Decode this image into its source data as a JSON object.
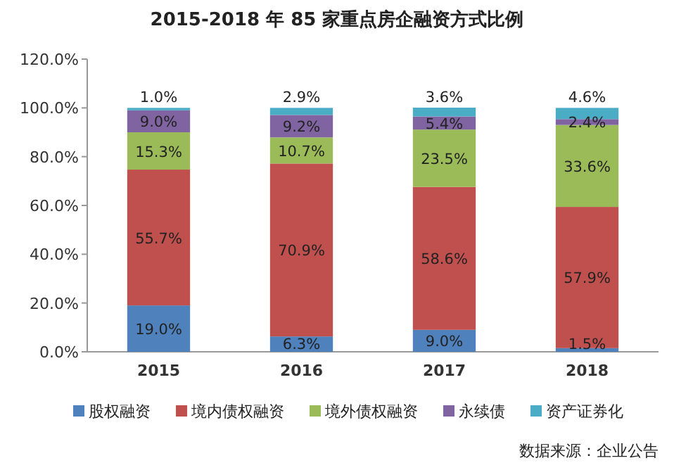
{
  "chart_data": {
    "type": "bar",
    "stacked": true,
    "title": "2015-2018 年 85 家重点房企融资方式比例",
    "categories": [
      "2015",
      "2016",
      "2017",
      "2018"
    ],
    "series": [
      {
        "name": "股权融资",
        "color": "#4f81bd",
        "values": [
          19.0,
          6.3,
          9.0,
          1.5
        ],
        "value_labels": [
          "19.0%",
          "6.3%",
          "9.0%",
          "1.5%"
        ]
      },
      {
        "name": "境内债权融资",
        "color": "#c0504d",
        "values": [
          55.7,
          70.9,
          58.6,
          57.9
        ],
        "value_labels": [
          "55.7%",
          "70.9%",
          "58.6%",
          "57.9%"
        ]
      },
      {
        "name": "境外债权融资",
        "color": "#9bbb59",
        "values": [
          15.3,
          10.7,
          23.5,
          33.6
        ],
        "value_labels": [
          "15.3%",
          "10.7%",
          "23.5%",
          "33.6%"
        ]
      },
      {
        "name": "永续债",
        "color": "#8064a2",
        "values": [
          9.0,
          9.2,
          5.4,
          2.4
        ],
        "value_labels": [
          "9.0%",
          "9.2%",
          "5.4%",
          "2.4%"
        ]
      },
      {
        "name": "资产证券化",
        "color": "#4bacc6",
        "values": [
          1.0,
          2.9,
          3.6,
          4.6
        ],
        "value_labels": [
          "1.0%",
          "2.9%",
          "3.6%",
          "4.6%"
        ]
      }
    ],
    "ylim": [
      0,
      120
    ],
    "yticks": [
      {
        "value": 0,
        "label": "0.0%"
      },
      {
        "value": 20,
        "label": "20.0%"
      },
      {
        "value": 40,
        "label": "40.0%"
      },
      {
        "value": 60,
        "label": "60.0%"
      },
      {
        "value": 80,
        "label": "80.0%"
      },
      {
        "value": 100,
        "label": "100.0%"
      },
      {
        "value": 120,
        "label": "120.0%"
      }
    ],
    "legend": "bottom",
    "annotations": [
      "数据来源：企业公告"
    ]
  }
}
